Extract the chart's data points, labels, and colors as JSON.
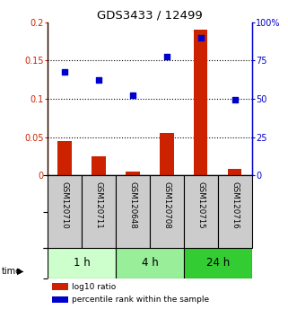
{
  "title": "GDS3433 / 12499",
  "samples": [
    "GSM120710",
    "GSM120711",
    "GSM120648",
    "GSM120708",
    "GSM120715",
    "GSM120716"
  ],
  "log10_ratio": [
    0.045,
    0.025,
    0.005,
    0.055,
    0.19,
    0.008
  ],
  "percentile_rank": [
    67.5,
    62.5,
    52.5,
    77.5,
    90.0,
    49.5
  ],
  "bar_color": "#cc2200",
  "dot_color": "#0000cc",
  "ylim_left": [
    0,
    0.2
  ],
  "ylim_right": [
    0,
    100
  ],
  "yticks_left": [
    0,
    0.05,
    0.1,
    0.15,
    0.2
  ],
  "yticks_left_labels": [
    "0",
    "0.05",
    "0.1",
    "0.15",
    "0.2"
  ],
  "yticks_right": [
    0,
    25,
    50,
    75,
    100
  ],
  "yticks_right_labels": [
    "0",
    "25",
    "50",
    "75",
    "100%"
  ],
  "legend_log10": "log10 ratio",
  "legend_percentile": "percentile rank within the sample",
  "time_label": "time",
  "background_color": "#ffffff",
  "plot_bg_color": "#ffffff",
  "label_area_color": "#cccccc",
  "time_colors": [
    "#ccffcc",
    "#99ee99",
    "#33cc33"
  ],
  "time_groups": [
    "1 h",
    "4 h",
    "24 h"
  ],
  "time_group_starts": [
    0,
    2,
    4
  ],
  "time_group_ends": [
    2,
    4,
    6
  ]
}
